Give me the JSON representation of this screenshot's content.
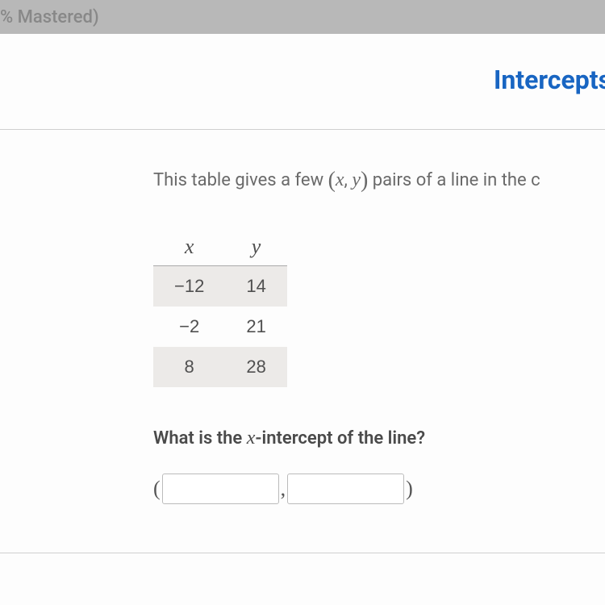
{
  "topBar": {
    "text": "% Mastered)"
  },
  "title": "Intercepts",
  "prompt": {
    "prefix": "This table gives a few ",
    "pair_open": "(",
    "var_x": "x",
    "pair_sep": ", ",
    "var_y": "y",
    "pair_close": ")",
    "suffix": " pairs of a line in the c"
  },
  "table": {
    "header_x": "x",
    "header_y": "y",
    "rows": [
      {
        "x": "−12",
        "y": "14",
        "shaded": true
      },
      {
        "x": "−2",
        "y": "21",
        "shaded": false
      },
      {
        "x": "8",
        "y": "28",
        "shaded": true
      }
    ]
  },
  "question": {
    "prefix": "What is the ",
    "var": "x",
    "suffix": "-intercept of the line?"
  },
  "answer": {
    "open": "(",
    "sep": ",",
    "close": ")",
    "input1": "",
    "input2": ""
  },
  "colors": {
    "title": "#1865c2",
    "greyBar": "#b8b8b8",
    "bodyText": "#6a6a6a",
    "shadedRow": "#eceae8"
  }
}
